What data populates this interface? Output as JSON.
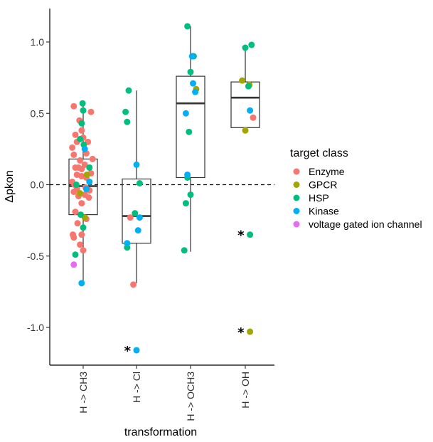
{
  "chart_data": {
    "type": "scatter",
    "subtype": "boxplot with jittered points",
    "title": "",
    "xlabel": "transformation",
    "ylabel": "Δpkon",
    "categories": [
      "H -> CH3",
      "H -> Cl",
      "H -> OCH3",
      "H -> OH"
    ],
    "ylim": [
      -1.25,
      1.25
    ],
    "yticks": [
      1.0,
      0.5,
      0.0,
      -0.5,
      -1.0
    ],
    "ytick_labels": [
      "1.0",
      "0.5",
      "0.0",
      "-0.5",
      "-1.0"
    ],
    "reference_line": {
      "y": 0,
      "style": "dashed"
    },
    "grid": false,
    "legend": {
      "title": "target class",
      "position": "right",
      "entries": [
        {
          "name": "Enzyme",
          "color": "#F8766D"
        },
        {
          "name": "GPCR",
          "color": "#A3A500"
        },
        {
          "name": "HSP",
          "color": "#00BF7D"
        },
        {
          "name": "Kinase",
          "color": "#00B0F6"
        },
        {
          "name": "voltage gated ion channel",
          "color": "#E76BF3"
        }
      ]
    },
    "boxes": [
      {
        "category": "H -> CH3",
        "q1": -0.21,
        "median": -0.01,
        "q3": 0.18,
        "whisker_low": -0.69,
        "whisker_high": 0.57
      },
      {
        "category": "H -> Cl",
        "q1": -0.41,
        "median": -0.22,
        "q3": 0.04,
        "whisker_low": -0.69,
        "whisker_high": 0.66
      },
      {
        "category": "H -> OCH3",
        "q1": 0.05,
        "median": 0.57,
        "q3": 0.76,
        "whisker_low": -0.47,
        "whisker_high": 1.11
      },
      {
        "category": "H -> OH",
        "q1": 0.4,
        "median": 0.61,
        "q3": 0.72,
        "whisker_low": 0.38,
        "whisker_high": 0.98
      }
    ],
    "outlier_marker": "*",
    "series": [
      {
        "name": "Enzyme",
        "color": "#F8766D",
        "points": [
          {
            "category": "H -> CH3",
            "x": -0.3,
            "y": 0.55
          },
          {
            "category": "H -> CH3",
            "x": 0.25,
            "y": 0.51
          },
          {
            "category": "H -> CH3",
            "x": -0.12,
            "y": 0.45
          },
          {
            "category": "H -> CH3",
            "x": -0.25,
            "y": 0.35
          },
          {
            "category": "H -> CH3",
            "x": -0.05,
            "y": 0.38
          },
          {
            "category": "H -> CH3",
            "x": 0.0,
            "y": 0.33
          },
          {
            "category": "H -> CH3",
            "x": -0.2,
            "y": 0.3
          },
          {
            "category": "H -> CH3",
            "x": 0.15,
            "y": 0.3
          },
          {
            "category": "H -> CH3",
            "x": -0.35,
            "y": 0.26
          },
          {
            "category": "H -> CH3",
            "x": 0.1,
            "y": 0.22
          },
          {
            "category": "H -> CH3",
            "x": -0.3,
            "y": 0.21
          },
          {
            "category": "H -> CH3",
            "x": 0.3,
            "y": 0.18
          },
          {
            "category": "H -> CH3",
            "x": -0.1,
            "y": 0.17
          },
          {
            "category": "H -> CH3",
            "x": 0.05,
            "y": 0.14
          },
          {
            "category": "H -> CH3",
            "x": -0.25,
            "y": 0.12
          },
          {
            "category": "H -> CH3",
            "x": -0.15,
            "y": 0.12
          },
          {
            "category": "H -> CH3",
            "x": -0.05,
            "y": 0.11
          },
          {
            "category": "H -> CH3",
            "x": 0.25,
            "y": 0.08
          },
          {
            "category": "H -> CH3",
            "x": -0.2,
            "y": 0.07
          },
          {
            "category": "H -> CH3",
            "x": -0.05,
            "y": 0.06
          },
          {
            "category": "H -> CH3",
            "x": 0.1,
            "y": 0.05
          },
          {
            "category": "H -> CH3",
            "x": -0.35,
            "y": 0.02
          },
          {
            "category": "H -> CH3",
            "x": -0.28,
            "y": 0.0
          },
          {
            "category": "H -> CH3",
            "x": 0.08,
            "y": -0.02
          },
          {
            "category": "H -> CH3",
            "x": -0.2,
            "y": -0.03
          },
          {
            "category": "H -> CH3",
            "x": 0.2,
            "y": -0.04
          },
          {
            "category": "H -> CH3",
            "x": -0.3,
            "y": -0.05
          },
          {
            "category": "H -> CH3",
            "x": 0.05,
            "y": -0.07
          },
          {
            "category": "H -> CH3",
            "x": -0.15,
            "y": -0.08
          },
          {
            "category": "H -> CH3",
            "x": 0.18,
            "y": -0.09
          },
          {
            "category": "H -> CH3",
            "x": -0.05,
            "y": -0.13
          },
          {
            "category": "H -> CH3",
            "x": -0.25,
            "y": -0.19
          },
          {
            "category": "H -> CH3",
            "x": 0.1,
            "y": -0.24
          },
          {
            "category": "H -> CH3",
            "x": -0.18,
            "y": -0.27
          },
          {
            "category": "H -> CH3",
            "x": -0.33,
            "y": -0.35
          },
          {
            "category": "H -> CH3",
            "x": -0.05,
            "y": -0.35
          },
          {
            "category": "H -> CH3",
            "x": -0.3,
            "y": -0.37
          },
          {
            "category": "H -> CH3",
            "x": -0.1,
            "y": -0.42
          },
          {
            "category": "H -> CH3",
            "x": 0.0,
            "y": -0.46
          },
          {
            "category": "H -> Cl",
            "x": -0.2,
            "y": -0.23
          },
          {
            "category": "H -> Cl",
            "x": -0.1,
            "y": -0.7
          },
          {
            "category": "H -> OH",
            "x": 0.25,
            "y": 0.47
          }
        ]
      },
      {
        "name": "GPCR",
        "color": "#A3A500",
        "points": [
          {
            "category": "H -> CH3",
            "x": 0.12,
            "y": 0.07
          },
          {
            "category": "H -> CH3",
            "x": -0.1,
            "y": -0.06
          },
          {
            "category": "H -> CH3",
            "x": 0.05,
            "y": -0.23
          },
          {
            "category": "H -> OCH3",
            "x": 0.18,
            "y": 0.67
          },
          {
            "category": "H -> OH",
            "x": -0.1,
            "y": 0.73
          },
          {
            "category": "H -> OH",
            "x": 0.13,
            "y": 0.7
          },
          {
            "category": "H -> OH",
            "x": 0.0,
            "y": 0.38
          },
          {
            "category": "H -> OH",
            "x": 0.15,
            "y": -1.03
          }
        ]
      },
      {
        "name": "HSP",
        "color": "#00BF7D",
        "points": [
          {
            "category": "H -> CH3",
            "x": -0.02,
            "y": 0.57
          },
          {
            "category": "H -> CH3",
            "x": 0.0,
            "y": 0.52
          },
          {
            "category": "H -> CH3",
            "x": -0.05,
            "y": 0.43
          },
          {
            "category": "H -> CH3",
            "x": -0.1,
            "y": 0.32
          },
          {
            "category": "H -> CH3",
            "x": 0.02,
            "y": 0.28
          },
          {
            "category": "H -> CH3",
            "x": 0.2,
            "y": 0.12
          },
          {
            "category": "H -> CH3",
            "x": -0.22,
            "y": 0.0
          },
          {
            "category": "H -> CH3",
            "x": -0.08,
            "y": -0.21
          },
          {
            "category": "H -> CH3",
            "x": 0.0,
            "y": -0.3
          },
          {
            "category": "H -> CH3",
            "x": -0.25,
            "y": -0.49
          },
          {
            "category": "H -> Cl",
            "x": -0.25,
            "y": 0.66
          },
          {
            "category": "H -> Cl",
            "x": -0.35,
            "y": 0.51
          },
          {
            "category": "H -> Cl",
            "x": -0.3,
            "y": 0.44
          },
          {
            "category": "H -> Cl",
            "x": 0.1,
            "y": 0.01
          },
          {
            "category": "H -> Cl",
            "x": -0.05,
            "y": -0.2
          },
          {
            "category": "H -> Cl",
            "x": -0.3,
            "y": -0.44
          },
          {
            "category": "H -> OCH3",
            "x": -0.1,
            "y": 1.11
          },
          {
            "category": "H -> OCH3",
            "x": 0.1,
            "y": 0.9
          },
          {
            "category": "H -> OCH3",
            "x": 0.0,
            "y": 0.79
          },
          {
            "category": "H -> OCH3",
            "x": -0.05,
            "y": 0.37
          },
          {
            "category": "H -> OCH3",
            "x": -0.1,
            "y": 0.05
          },
          {
            "category": "H -> OCH3",
            "x": 0.0,
            "y": -0.07
          },
          {
            "category": "H -> OCH3",
            "x": -0.15,
            "y": -0.13
          },
          {
            "category": "H -> OCH3",
            "x": -0.2,
            "y": -0.46
          },
          {
            "category": "H -> OH",
            "x": 0.2,
            "y": 0.98
          },
          {
            "category": "H -> OH",
            "x": 0.0,
            "y": 0.96
          },
          {
            "category": "H -> OH",
            "x": 0.1,
            "y": 0.69
          },
          {
            "category": "H -> OH",
            "x": 0.15,
            "y": -0.35
          }
        ]
      },
      {
        "name": "Kinase",
        "color": "#00B0F6",
        "points": [
          {
            "category": "H -> CH3",
            "x": 0.05,
            "y": 0.25
          },
          {
            "category": "H -> CH3",
            "x": 0.2,
            "y": 0.02
          },
          {
            "category": "H -> CH3",
            "x": 0.1,
            "y": -0.03
          },
          {
            "category": "H -> CH3",
            "x": -0.05,
            "y": -0.69
          },
          {
            "category": "H -> Cl",
            "x": 0.0,
            "y": 0.14
          },
          {
            "category": "H -> Cl",
            "x": 0.1,
            "y": -0.23
          },
          {
            "category": "H -> Cl",
            "x": 0.05,
            "y": -0.32
          },
          {
            "category": "H -> Cl",
            "x": -0.3,
            "y": -0.41
          },
          {
            "category": "H -> Cl",
            "x": 0.0,
            "y": -1.16
          },
          {
            "category": "H -> OCH3",
            "x": 0.05,
            "y": 0.9
          },
          {
            "category": "H -> OCH3",
            "x": 0.08,
            "y": 0.71
          },
          {
            "category": "H -> OCH3",
            "x": 0.15,
            "y": 0.65
          },
          {
            "category": "H -> OCH3",
            "x": -0.15,
            "y": 0.5
          },
          {
            "category": "H -> OCH3",
            "x": -0.1,
            "y": 0.07
          },
          {
            "category": "H -> OH",
            "x": 0.15,
            "y": 0.52
          }
        ]
      },
      {
        "name": "voltage gated ion channel",
        "color": "#E76BF3",
        "points": [
          {
            "category": "H -> CH3",
            "x": -0.3,
            "y": -0.56
          }
        ]
      }
    ],
    "outliers": [
      {
        "category": "H -> Cl",
        "y": -1.16
      },
      {
        "category": "H -> OH",
        "y": -0.35
      },
      {
        "category": "H -> OH",
        "y": -1.03
      }
    ]
  }
}
